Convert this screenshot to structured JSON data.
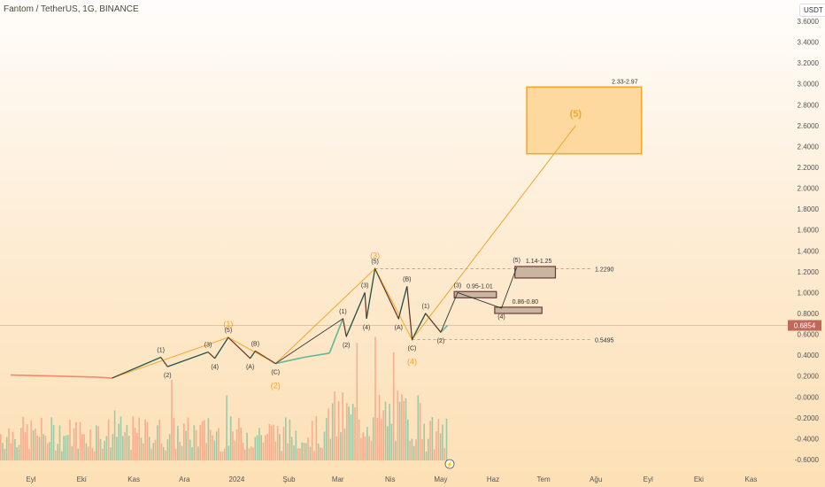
{
  "header": {
    "title": "Fantom / TetherUS, 1G, BINANCE",
    "currency": "USDT"
  },
  "chart_data": {
    "type": "candlestick",
    "title": "Fantom / TetherUS, 1G, BINANCE",
    "ylim": [
      -0.6,
      3.6
    ],
    "y_ticks": [
      "3.6000",
      "3.4000",
      "3.2000",
      "3.0000",
      "2.8000",
      "2.6000",
      "2.4000",
      "2.2000",
      "2.0000",
      "1.8000",
      "1.6000",
      "1.4000",
      "1.2000",
      "1.0000",
      "0.8000",
      "0.6000",
      "0.4000",
      "0.2000",
      "-0.0000",
      "-0.2000",
      "-0.4000",
      "-0.6000"
    ],
    "x_ticks": [
      {
        "label": "Eyl",
        "date": "2023-09-01"
      },
      {
        "label": "Eki",
        "date": "2023-10-01"
      },
      {
        "label": "Kas",
        "date": "2023-11-01"
      },
      {
        "label": "Ara",
        "date": "2023-12-01"
      },
      {
        "label": "2024",
        "date": "2024-01-01"
      },
      {
        "label": "Şub",
        "date": "2024-02-01"
      },
      {
        "label": "Mar",
        "date": "2024-03-01"
      },
      {
        "label": "Nis",
        "date": "2024-04-01"
      },
      {
        "label": "May",
        "date": "2024-05-01"
      },
      {
        "label": "Haz",
        "date": "2024-06-01"
      },
      {
        "label": "Tem",
        "date": "2024-07-01"
      },
      {
        "label": "Ağu",
        "date": "2024-08-01"
      },
      {
        "label": "Eyl",
        "date": "2024-09-01"
      },
      {
        "label": "Eki",
        "date": "2024-10-01"
      },
      {
        "label": "Kas",
        "date": "2024-11-01"
      }
    ],
    "last_price": {
      "value": "0.6854",
      "color": "#c0695b"
    },
    "price_path": [
      [
        "2023-08-20",
        0.21
      ],
      [
        "2023-09-15",
        0.2
      ],
      [
        "2023-10-10",
        0.19
      ],
      [
        "2023-10-19",
        0.18
      ],
      [
        "2023-11-17",
        0.38
      ],
      [
        "2023-11-21",
        0.29
      ],
      [
        "2023-12-15",
        0.43
      ],
      [
        "2023-12-19",
        0.37
      ],
      [
        "2023-12-27",
        0.57
      ],
      [
        "2024-01-09",
        0.37
      ],
      [
        "2024-01-12",
        0.44
      ],
      [
        "2024-01-24",
        0.32
      ],
      [
        "2024-02-10",
        0.38
      ],
      [
        "2024-02-25",
        0.42
      ],
      [
        "2024-03-04",
        0.75
      ],
      [
        "2024-03-06",
        0.58
      ],
      [
        "2024-03-17",
        1.0
      ],
      [
        "2024-03-18",
        0.75
      ],
      [
        "2024-03-23",
        1.229
      ],
      [
        "2024-04-06",
        0.75
      ],
      [
        "2024-04-11",
        1.06
      ],
      [
        "2024-04-14",
        0.55
      ],
      [
        "2024-04-22",
        0.8
      ],
      [
        "2024-05-01",
        0.62
      ],
      [
        "2024-05-05",
        0.6854
      ]
    ],
    "orange_waves": [
      {
        "label": "",
        "date": "2023-10-19",
        "price": 0.18
      },
      {
        "label": "(1)",
        "date": "2023-12-27",
        "price": 0.57
      },
      {
        "label": "(2)",
        "date": "2024-01-24",
        "price": 0.32
      },
      {
        "label": "(3)",
        "date": "2024-03-23",
        "price": 1.229
      },
      {
        "label": "(4)",
        "date": "2024-04-14",
        "price": 0.5495
      },
      {
        "label": "(5)",
        "date": "2024-07-20",
        "price": 2.6
      }
    ],
    "black_waves": [
      {
        "label": "",
        "date": "2023-10-19",
        "price": 0.18
      },
      {
        "label": "(1)",
        "date": "2023-11-17",
        "price": 0.38,
        "pos": "above"
      },
      {
        "label": "(2)",
        "date": "2023-11-21",
        "price": 0.29,
        "pos": "below"
      },
      {
        "label": "(3)",
        "date": "2023-12-15",
        "price": 0.43,
        "pos": "above"
      },
      {
        "label": "(4)",
        "date": "2023-12-19",
        "price": 0.37,
        "pos": "below"
      },
      {
        "label": "(5)",
        "date": "2023-12-27",
        "price": 0.57,
        "pos": "above"
      },
      {
        "label": "(A)",
        "date": "2024-01-09",
        "price": 0.37,
        "pos": "below"
      },
      {
        "label": "(B)",
        "date": "2024-01-12",
        "price": 0.44,
        "pos": "above"
      },
      {
        "label": "(C)",
        "date": "2024-01-24",
        "price": 0.32,
        "pos": "below"
      },
      {
        "label": "(1)",
        "date": "2024-03-04",
        "price": 0.75,
        "pos": "above"
      },
      {
        "label": "(2)",
        "date": "2024-03-06",
        "price": 0.58,
        "pos": "below"
      },
      {
        "label": "(3)",
        "date": "2024-03-17",
        "price": 1.0,
        "pos": "above"
      },
      {
        "label": "(4)",
        "date": "2024-03-18",
        "price": 0.75,
        "pos": "below"
      },
      {
        "label": "(5)",
        "date": "2024-03-23",
        "price": 1.229,
        "pos": "above"
      },
      {
        "label": "(A)",
        "date": "2024-04-06",
        "price": 0.75,
        "pos": "below"
      },
      {
        "label": "(B)",
        "date": "2024-04-11",
        "price": 1.06,
        "pos": "above"
      },
      {
        "label": "(C)",
        "date": "2024-04-14",
        "price": 0.5495,
        "pos": "below"
      },
      {
        "label": "(1)",
        "date": "2024-04-22",
        "price": 0.8,
        "pos": "above"
      },
      {
        "label": "(2)",
        "date": "2024-05-01",
        "price": 0.62,
        "pos": "below"
      },
      {
        "label": "(3)",
        "date": "2024-05-11",
        "price": 1.0,
        "pos": "above"
      },
      {
        "label": "(4)",
        "date": "2024-06-06",
        "price": 0.85,
        "pos": "below"
      },
      {
        "label": "(5)",
        "date": "2024-06-15",
        "price": 1.24,
        "pos": "above"
      }
    ],
    "target_boxes": [
      {
        "label": "0.95-1.01",
        "low": 0.95,
        "high": 1.01,
        "from": "2024-05-09",
        "to": "2024-06-03",
        "style": "gray"
      },
      {
        "label": "0.86-0.80",
        "low": 0.8,
        "high": 0.86,
        "from": "2024-06-02",
        "to": "2024-06-30",
        "style": "gray"
      },
      {
        "label": "1.14-1.25",
        "low": 1.14,
        "high": 1.25,
        "from": "2024-06-14",
        "to": "2024-07-08",
        "style": "gray"
      },
      {
        "label": "2.33-2.97",
        "low": 2.33,
        "high": 2.97,
        "from": "2024-06-21",
        "to": "2024-08-28",
        "style": "orange"
      }
    ],
    "levels": [
      {
        "label": "1.2290",
        "price": 1.229,
        "from": "2024-03-23",
        "color": "#e8826f"
      },
      {
        "label": "0.5495",
        "price": 0.5495,
        "from": "2024-04-14",
        "color": "#5fb89a"
      }
    ],
    "colors": {
      "up": "#5fb89a",
      "down": "#f08a70",
      "orange": "#f5a623",
      "wave": "#333333"
    }
  }
}
